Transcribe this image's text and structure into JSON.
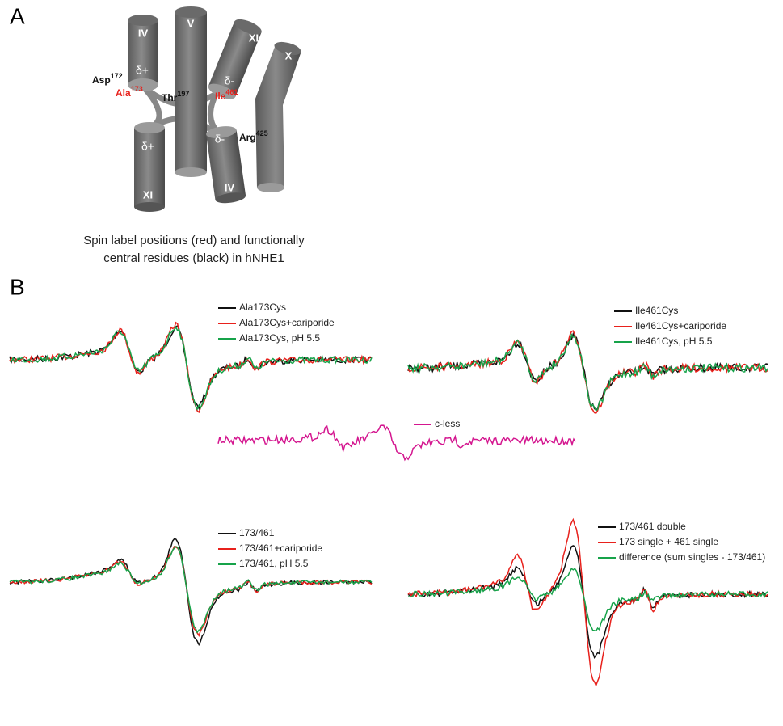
{
  "panel_a": {
    "label": "A",
    "helices": [
      "IV",
      "V",
      "XI",
      "X",
      "XI",
      "IV"
    ],
    "charges": [
      "δ+",
      "δ-",
      "δ+",
      "δ-"
    ],
    "residues": [
      {
        "name": "Asp",
        "number": "172",
        "color": "#111111"
      },
      {
        "name": "Ala",
        "number": "173",
        "color": "#e8211c"
      },
      {
        "name": "Thr",
        "number": "197",
        "color": "#111111"
      },
      {
        "name": "Ile",
        "number": "461",
        "color": "#e8211c"
      },
      {
        "name": "Arg",
        "number": "425",
        "color": "#111111"
      }
    ],
    "caption": [
      "Spin label positions (red) and functionally",
      "central residues (black) in hNHE1"
    ]
  },
  "panel_b": {
    "label": "B",
    "spectra": [
      {
        "legend": [
          {
            "name": "Ala173Cys",
            "color": "#111111"
          },
          {
            "name": "Ala173Cys+cariporide",
            "color": "#e8211c"
          },
          {
            "name": "Ala173Cys, pH 5.5",
            "color": "#17a34a"
          }
        ]
      },
      {
        "legend": [
          {
            "name": "Ile461Cys",
            "color": "#111111"
          },
          {
            "name": "Ile461Cys+cariporide",
            "color": "#e8211c"
          },
          {
            "name": "Ile461Cys, pH 5.5",
            "color": "#17a34a"
          }
        ]
      },
      {
        "legend": [
          {
            "name": "c-less",
            "color": "#d4168f"
          }
        ]
      },
      {
        "legend": [
          {
            "name": "173/461",
            "color": "#111111"
          },
          {
            "name": "173/461+cariporide",
            "color": "#e8211c"
          },
          {
            "name": "173/461, pH 5.5",
            "color": "#17a34a"
          }
        ]
      },
      {
        "legend": [
          {
            "name": "173/461 double",
            "color": "#111111"
          },
          {
            "name": "173 single + 461 single",
            "color": "#e8211c"
          },
          {
            "name": "difference (sum singles - 173/461)",
            "color": "#17a34a"
          }
        ]
      }
    ]
  }
}
